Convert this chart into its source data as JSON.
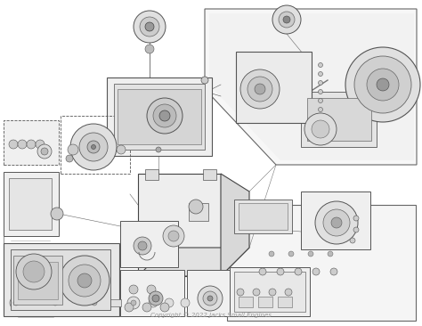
{
  "background_color": "#ffffff",
  "copyright_text": "Copyright © 2022 Jacks Small Engines",
  "fig_width": 4.74,
  "fig_height": 3.66,
  "dpi": 100,
  "image_overall_gray": 0.97,
  "line_color": "#444444",
  "light_gray": "#e8e8e8",
  "mid_gray": "#bbbbbb",
  "dark_gray": "#666666"
}
